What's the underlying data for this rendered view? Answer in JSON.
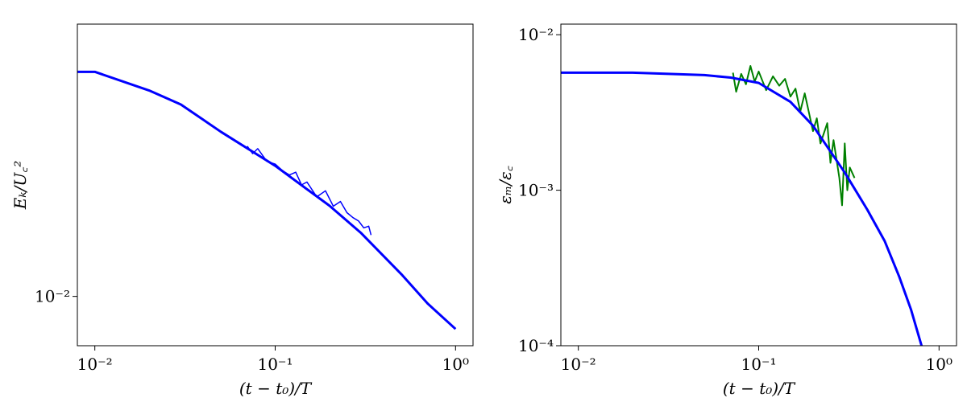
{
  "chart_data": [
    {
      "type": "line",
      "xlabel": "(t − t₀)/T",
      "ylabel": "Eₖ/U꜀²",
      "xlog": true,
      "ylog": true,
      "xlim": [
        0.008,
        1.25
      ],
      "ylim": [
        0.0081,
        0.032
      ],
      "xticks": [
        {
          "value": 0.01,
          "label": "10⁻²"
        },
        {
          "value": 0.1,
          "label": "10⁻¹"
        },
        {
          "value": 1,
          "label": "10⁰"
        }
      ],
      "yticks": [
        {
          "value": 0.01,
          "label": "10⁻²"
        }
      ],
      "series": [
        {
          "color": "#0000ff",
          "width": 1.5,
          "x": [
            0.07,
            0.075,
            0.08,
            0.09,
            0.1,
            0.11,
            0.12,
            0.13,
            0.14,
            0.15,
            0.17,
            0.19,
            0.21,
            0.23,
            0.25,
            0.27,
            0.29,
            0.31,
            0.33,
            0.34
          ],
          "values": [
            0.019,
            0.0184,
            0.0188,
            0.0178,
            0.0176,
            0.0171,
            0.0168,
            0.017,
            0.0161,
            0.0163,
            0.0153,
            0.0157,
            0.0147,
            0.015,
            0.0143,
            0.014,
            0.0138,
            0.0134,
            0.0135,
            0.013
          ]
        },
        {
          "color": "#0000ff",
          "width": 3,
          "x": [
            0.008,
            0.01,
            0.02,
            0.03,
            0.05,
            0.1,
            0.2,
            0.3,
            0.5,
            0.7,
            1.0
          ],
          "values": [
            0.0261,
            0.0261,
            0.0241,
            0.0227,
            0.0202,
            0.01747,
            0.01473,
            0.0131,
            0.011,
            0.0097,
            0.0087
          ]
        }
      ]
    },
    {
      "type": "line",
      "xlabel": "(t − t₀)/T",
      "ylabel": "εₘ/ε꜀",
      "xlog": true,
      "ylog": true,
      "xlim": [
        0.008,
        1.25
      ],
      "ylim": [
        0.0001,
        0.0117
      ],
      "xticks": [
        {
          "value": 0.01,
          "label": "10⁻²"
        },
        {
          "value": 0.1,
          "label": "10⁻¹"
        },
        {
          "value": 1,
          "label": "10⁰"
        }
      ],
      "yticks": [
        {
          "value": 0.0001,
          "label": "10⁻⁴"
        },
        {
          "value": 0.001,
          "label": "10⁻³"
        },
        {
          "value": 0.01,
          "label": "10⁻²"
        }
      ],
      "series": [
        {
          "color": "#008000",
          "width": 2,
          "x": [
            0.072,
            0.075,
            0.08,
            0.085,
            0.09,
            0.095,
            0.1,
            0.11,
            0.12,
            0.13,
            0.14,
            0.15,
            0.16,
            0.17,
            0.18,
            0.2,
            0.21,
            0.22,
            0.24,
            0.25,
            0.26,
            0.28,
            0.29,
            0.3,
            0.31,
            0.32,
            0.34
          ],
          "values": [
            0.0057,
            0.0043,
            0.0056,
            0.0048,
            0.0063,
            0.005,
            0.0058,
            0.0044,
            0.0054,
            0.0047,
            0.0052,
            0.004,
            0.0045,
            0.0032,
            0.0042,
            0.0024,
            0.0029,
            0.002,
            0.0027,
            0.0015,
            0.0021,
            0.0012,
            0.0008,
            0.002,
            0.001,
            0.0014,
            0.0012
          ]
        },
        {
          "color": "#0000ff",
          "width": 3,
          "x": [
            0.008,
            0.01,
            0.02,
            0.05,
            0.07,
            0.1,
            0.15,
            0.2,
            0.3,
            0.4,
            0.5,
            0.6,
            0.7,
            0.8
          ],
          "values": [
            0.0057,
            0.0057,
            0.0057,
            0.0055,
            0.0053,
            0.0049,
            0.0037,
            0.0026,
            0.0013,
            0.00075,
            0.00047,
            0.00028,
            0.00017,
            0.0001
          ]
        }
      ]
    }
  ]
}
